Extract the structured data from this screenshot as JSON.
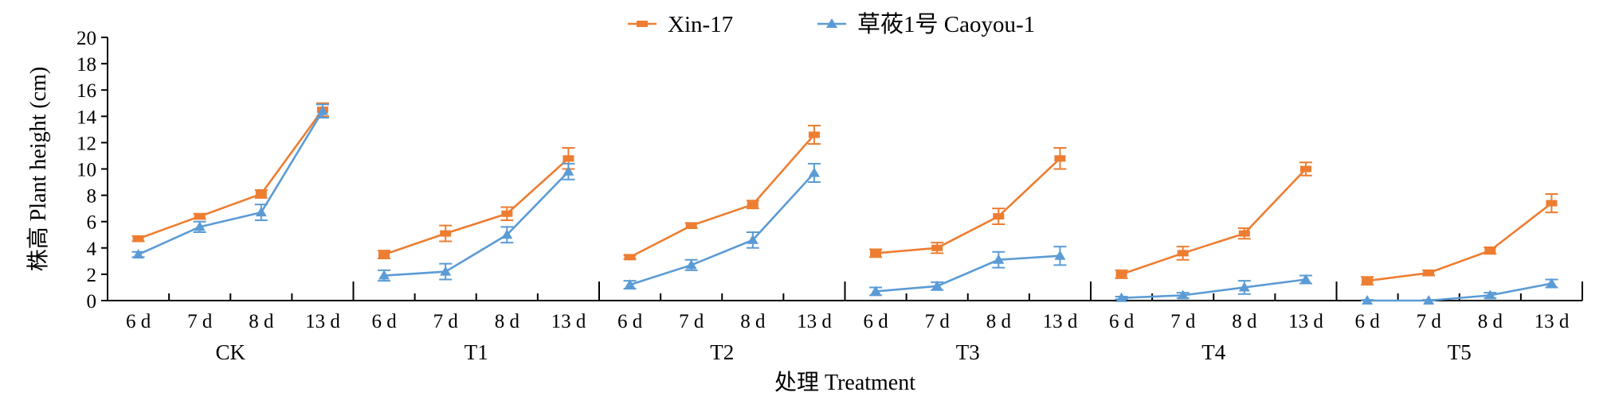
{
  "chart_data": {
    "type": "line",
    "title": "",
    "xlabel": "处理 Treatment",
    "ylabel": "株高 Plant height (cm)",
    "ylim": [
      0,
      20
    ],
    "yticks": [
      "0",
      "2",
      "4",
      "6",
      "8",
      "10",
      "12",
      "14",
      "16",
      "18",
      "20"
    ],
    "groups": [
      "CK",
      "T1",
      "T2",
      "T3",
      "T4",
      "T5"
    ],
    "days": [
      "6 d",
      "7 d",
      "8 d",
      "13 d"
    ],
    "legend_position": "top-center",
    "grid": false,
    "series": [
      {
        "name": "Xin-17",
        "color": "#ED7D31",
        "marker": "square",
        "values": [
          [
            4.7,
            6.4,
            8.1,
            14.5
          ],
          [
            3.5,
            5.1,
            6.6,
            10.8
          ],
          [
            3.3,
            5.7,
            7.3,
            12.6
          ],
          [
            3.6,
            4.0,
            6.4,
            10.8
          ],
          [
            2.0,
            3.6,
            5.1,
            10.0
          ],
          [
            1.5,
            2.1,
            3.8,
            7.4
          ]
        ],
        "errors": [
          [
            0.2,
            0.2,
            0.3,
            0.5
          ],
          [
            0.3,
            0.6,
            0.5,
            0.8
          ],
          [
            0.15,
            0.2,
            0.3,
            0.7
          ],
          [
            0.3,
            0.4,
            0.6,
            0.8
          ],
          [
            0.3,
            0.5,
            0.4,
            0.5
          ],
          [
            0.3,
            0.2,
            0.25,
            0.7
          ]
        ]
      },
      {
        "name": "草莜1号 Caoyou-1",
        "color": "#5B9BD5",
        "marker": "triangle",
        "values": [
          [
            3.5,
            5.6,
            6.7,
            14.4
          ],
          [
            1.9,
            2.2,
            5.0,
            9.8
          ],
          [
            1.2,
            2.7,
            4.6,
            9.7
          ],
          [
            0.7,
            1.1,
            3.1,
            3.4
          ],
          [
            0.2,
            0.4,
            1.0,
            1.6
          ],
          [
            0.0,
            0.0,
            0.4,
            1.3
          ]
        ],
        "errors": [
          [
            0.2,
            0.4,
            0.6,
            0.5
          ],
          [
            0.4,
            0.6,
            0.6,
            0.6
          ],
          [
            0.3,
            0.4,
            0.6,
            0.7
          ],
          [
            0.3,
            0.3,
            0.6,
            0.7
          ],
          [
            0.1,
            0.2,
            0.5,
            0.3
          ],
          [
            0.05,
            0.05,
            0.2,
            0.3
          ]
        ]
      }
    ]
  }
}
